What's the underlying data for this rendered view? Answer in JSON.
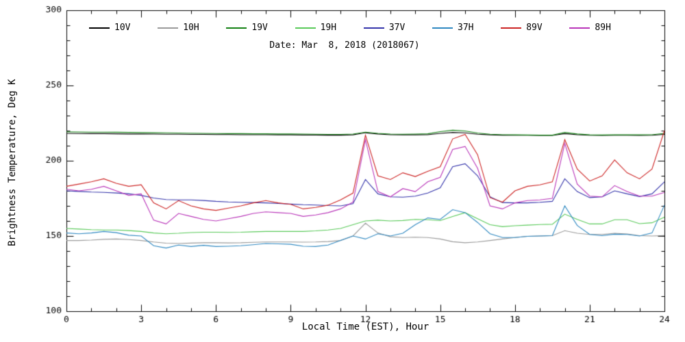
{
  "chart_data": {
    "type": "line",
    "title": "Date: Mar  8, 2018 (2018067)",
    "xlabel": "Local Time (EST), Hour",
    "ylabel": "Brightness Temperature, Deg K",
    "xlim": [
      0,
      24
    ],
    "ylim": [
      100,
      300
    ],
    "xticks": [
      0,
      3,
      6,
      9,
      12,
      15,
      18,
      21,
      24
    ],
    "yticks": [
      100,
      150,
      200,
      250,
      300
    ],
    "x_minor_step": 1,
    "y_minor_step": 10,
    "grid": false,
    "legend_position": "top-inside",
    "x_start": 0,
    "x_step": 0.5,
    "series": [
      {
        "name": "10V",
        "color": "#000000",
        "values": [
          218.2,
          218.1,
          218.0,
          218.0,
          217.9,
          217.8,
          217.8,
          217.7,
          217.6,
          217.6,
          217.5,
          217.5,
          217.4,
          217.4,
          217.3,
          217.3,
          217.3,
          217.2,
          217.2,
          217.1,
          217.1,
          217.0,
          217.0,
          217.2,
          218.6,
          217.8,
          217.3,
          217.2,
          217.2,
          217.3,
          218.2,
          218.8,
          218.5,
          217.6,
          217.2,
          217.0,
          216.9,
          216.9,
          216.8,
          216.8,
          218.0,
          217.3,
          216.9,
          216.8,
          216.9,
          216.9,
          216.8,
          216.9,
          217.5
        ]
      },
      {
        "name": "10H",
        "color": "#999999",
        "values": [
          147.0,
          147.0,
          147.3,
          147.8,
          148.0,
          147.6,
          147.0,
          146.0,
          145.2,
          145.0,
          145.3,
          145.5,
          145.5,
          145.4,
          145.5,
          145.8,
          146.0,
          146.0,
          146.0,
          145.9,
          146.0,
          146.3,
          147.0,
          150.0,
          158.5,
          152.0,
          149.5,
          149.0,
          149.2,
          149.0,
          148.0,
          146.2,
          145.5,
          146.0,
          147.0,
          148.0,
          149.0,
          149.8,
          150.0,
          150.2,
          153.5,
          151.8,
          151.0,
          151.0,
          151.8,
          151.3,
          150.2,
          150.0,
          150.3
        ]
      },
      {
        "name": "19V",
        "color": "#128012",
        "values": [
          219.2,
          219.1,
          219.0,
          219.0,
          218.9,
          218.8,
          218.7,
          218.6,
          218.5,
          218.4,
          218.3,
          218.2,
          218.1,
          218.0,
          218.0,
          217.9,
          217.9,
          217.8,
          217.8,
          217.7,
          217.6,
          217.5,
          217.5,
          217.7,
          219.0,
          218.2,
          217.7,
          217.6,
          217.7,
          217.9,
          219.3,
          220.3,
          219.8,
          218.4,
          217.6,
          217.3,
          217.2,
          217.1,
          217.0,
          217.0,
          218.8,
          217.8,
          217.2,
          217.1,
          217.2,
          217.3,
          217.2,
          217.3,
          218.2
        ]
      },
      {
        "name": "19H",
        "color": "#58c958",
        "values": [
          155.0,
          154.6,
          154.2,
          154.0,
          154.0,
          153.6,
          153.0,
          152.0,
          151.5,
          151.8,
          152.3,
          152.5,
          152.5,
          152.4,
          152.5,
          152.8,
          153.0,
          153.0,
          153.0,
          153.0,
          153.4,
          154.0,
          155.0,
          157.5,
          160.0,
          160.5,
          160.0,
          160.3,
          161.0,
          160.8,
          160.2,
          163.0,
          165.5,
          161.5,
          157.5,
          156.2,
          156.8,
          157.2,
          157.6,
          157.8,
          164.5,
          161.0,
          158.0,
          158.0,
          160.8,
          160.8,
          158.2,
          158.8,
          162.5
        ]
      },
      {
        "name": "37V",
        "color": "#3333aa",
        "values": [
          180.0,
          179.6,
          179.2,
          179.0,
          178.6,
          178.0,
          177.0,
          175.2,
          174.2,
          174.0,
          174.0,
          173.6,
          173.0,
          172.6,
          172.4,
          172.2,
          172.0,
          171.6,
          171.2,
          170.8,
          170.6,
          170.2,
          170.0,
          171.5,
          187.5,
          178.0,
          176.0,
          175.8,
          176.5,
          178.5,
          182.0,
          196.0,
          198.0,
          190.0,
          176.0,
          172.2,
          172.0,
          172.0,
          172.4,
          173.0,
          188.0,
          179.5,
          175.5,
          176.0,
          180.0,
          178.0,
          176.2,
          178.0,
          186.0
        ]
      },
      {
        "name": "37H",
        "color": "#2d87c0",
        "values": [
          152.0,
          151.5,
          152.0,
          153.0,
          152.2,
          150.5,
          150.0,
          143.5,
          142.0,
          144.0,
          143.0,
          143.8,
          143.0,
          143.2,
          143.5,
          144.2,
          145.0,
          144.8,
          144.5,
          143.2,
          143.0,
          144.0,
          147.0,
          150.0,
          148.0,
          151.5,
          150.0,
          151.8,
          157.5,
          162.0,
          161.0,
          167.5,
          165.5,
          159.0,
          151.5,
          149.0,
          149.0,
          149.8,
          150.0,
          150.2,
          170.0,
          157.0,
          151.0,
          150.2,
          151.2,
          151.0,
          150.0,
          152.0,
          170.5
        ]
      },
      {
        "name": "89V",
        "color": "#cc2222",
        "values": [
          183.0,
          184.5,
          186.0,
          188.0,
          185.0,
          183.0,
          184.0,
          172.0,
          168.0,
          173.5,
          170.0,
          168.0,
          167.0,
          168.5,
          170.0,
          172.0,
          173.5,
          172.0,
          171.0,
          168.0,
          169.0,
          170.5,
          174.0,
          178.5,
          217.0,
          190.0,
          187.5,
          192.0,
          189.5,
          193.0,
          196.0,
          214.5,
          217.5,
          204.0,
          175.5,
          172.5,
          180.0,
          183.0,
          184.0,
          186.0,
          214.0,
          194.5,
          186.5,
          190.0,
          200.5,
          192.0,
          188.0,
          194.5,
          220.0
        ]
      },
      {
        "name": "89H",
        "color": "#b833b8",
        "values": [
          181.0,
          180.0,
          181.0,
          183.0,
          180.0,
          177.0,
          178.0,
          160.5,
          158.0,
          165.0,
          163.0,
          161.0,
          160.0,
          161.5,
          163.0,
          165.0,
          166.0,
          165.5,
          165.0,
          163.0,
          164.0,
          165.5,
          168.0,
          172.5,
          214.0,
          179.5,
          176.0,
          181.5,
          179.5,
          186.0,
          189.0,
          207.5,
          209.5,
          195.0,
          170.0,
          168.0,
          172.0,
          173.5,
          174.0,
          175.0,
          211.5,
          184.5,
          176.5,
          176.0,
          183.5,
          179.5,
          176.5,
          176.5,
          179.0
        ]
      }
    ]
  }
}
